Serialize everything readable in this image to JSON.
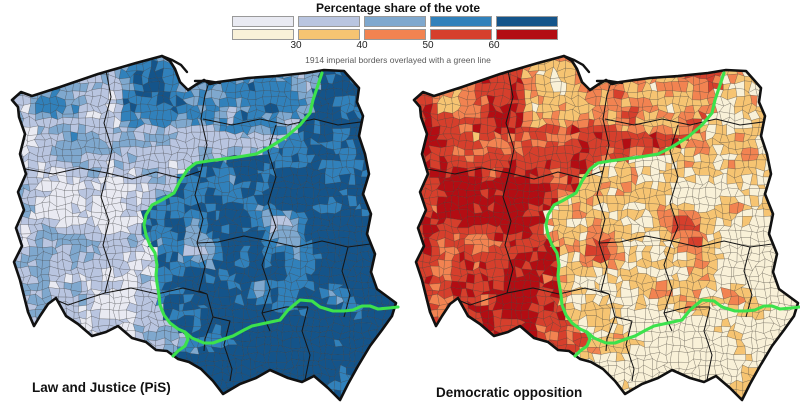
{
  "legend": {
    "title": "Percentage share of the vote",
    "note": "1914 imperial borders overlayed with a green line",
    "ticks": [
      "30",
      "40",
      "50",
      "60"
    ],
    "scale_blue": [
      "#e9eaf2",
      "#b9c5e0",
      "#7fa8ce",
      "#3181bb",
      "#14548a"
    ],
    "scale_red": [
      "#f9f1d8",
      "#f6c472",
      "#f28351",
      "#d63f2c",
      "#b30d13"
    ]
  },
  "maps": [
    {
      "id": "pis",
      "label": "Law and Justice (PiS)",
      "palette": "scale_blue"
    },
    {
      "id": "opposition",
      "label": "Democratic opposition",
      "palette": "scale_red"
    }
  ],
  "overlay": {
    "green_line_color": "#3ce24c",
    "country_outline_color": "#111111",
    "region_border_color": "#161616"
  }
}
